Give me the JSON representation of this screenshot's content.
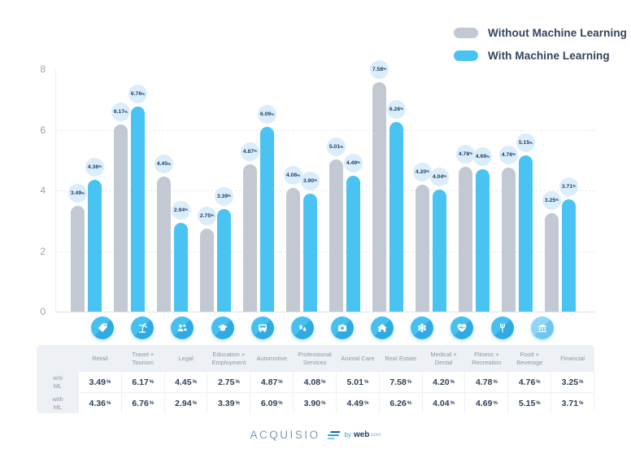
{
  "chart_data": {
    "type": "bar",
    "title": "",
    "categories": [
      "Retail",
      "Travel + Tourism",
      "Legal",
      "Education + Employment",
      "Automotive",
      "Professional Services",
      "Animal Care",
      "Real Estate",
      "Medical + Dental",
      "Fitness + Recreation",
      "Food + Beverage",
      "Financial"
    ],
    "series": [
      {
        "name": "Without Machine Learning",
        "color": "#c3c9d3",
        "values": [
          3.49,
          6.17,
          4.45,
          2.75,
          4.87,
          4.08,
          5.01,
          7.58,
          4.2,
          4.78,
          4.76,
          3.25
        ]
      },
      {
        "name": "With Machine Learning",
        "color": "#49c4f2",
        "values": [
          4.36,
          6.76,
          2.94,
          3.39,
          6.09,
          3.9,
          4.49,
          6.26,
          4.04,
          4.69,
          5.15,
          3.71
        ]
      }
    ],
    "ylim": [
      0,
      8
    ],
    "yticks": [
      0,
      2,
      4,
      6,
      8
    ],
    "value_suffix": "%",
    "grid": "dashed-horizontal",
    "legend_position": "top-right"
  },
  "icons": [
    "retail-icon",
    "travel-tourism-icon",
    "legal-icon",
    "education-employment-icon",
    "automotive-icon",
    "professional-services-icon",
    "animal-care-icon",
    "real-estate-icon",
    "medical-dental-icon",
    "fitness-recreation-icon",
    "food-beverage-icon",
    "financial-icon"
  ],
  "table": {
    "row_labels": [
      "w/o\nML",
      "with\nML"
    ]
  },
  "footer": {
    "brand": "ACQUISIO",
    "by": "by",
    "by_brand": "web",
    "by_suffix": ".com"
  },
  "colors": {
    "bar_without": "#c3c9d3",
    "bar_with": "#49c4f2",
    "bubble_bg": "#d9edfa",
    "bubble_text": "#1e3a5f",
    "icon_circle": "#3fb9ed",
    "table_panel": "#edf0f4"
  }
}
